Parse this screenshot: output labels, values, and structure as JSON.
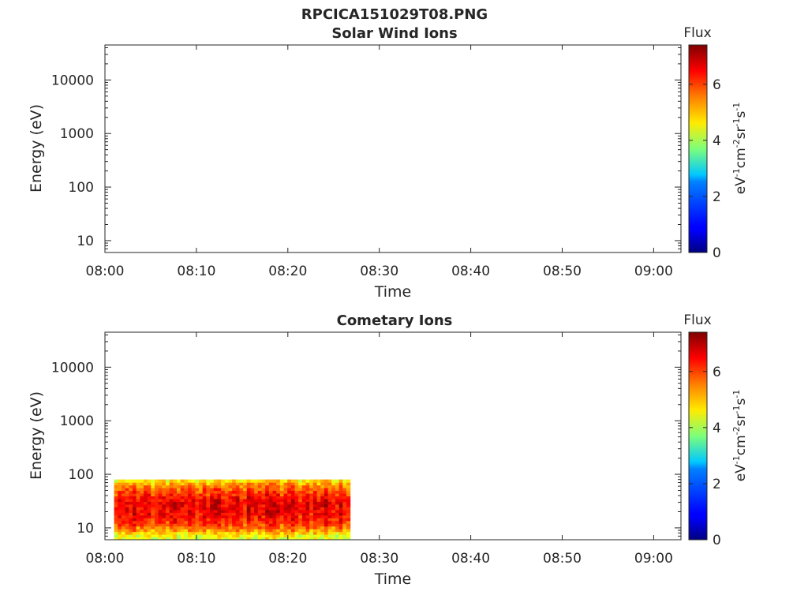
{
  "figure_title": "RPCICA151029T08.PNG",
  "colorbar": {
    "label": "Flux",
    "unit_html": "eV<sup>-1</sup>cm<sup>-2</sup>sr<sup>-1</sup>s<sup>-1</sup>",
    "min": 0,
    "max": 7.4,
    "ticks": [
      0,
      2,
      4,
      6
    ],
    "colormap": "jet"
  },
  "chart_data": [
    {
      "type": "heatmap",
      "title": "Solar Wind Ions",
      "xlabel": "Time",
      "ylabel": "Energy (eV)",
      "x_ticks": [
        "08:00",
        "08:10",
        "08:20",
        "08:30",
        "08:40",
        "08:50",
        "09:00"
      ],
      "x_range_minutes": [
        0,
        63
      ],
      "y_scale": "log",
      "y_ticks": [
        10,
        100,
        1000,
        10000
      ],
      "y_tick_labels": [
        "10",
        "100",
        "1000",
        "10000"
      ],
      "ylim": [
        6,
        45000
      ],
      "data_present": false
    },
    {
      "type": "heatmap",
      "title": "Cometary Ions",
      "xlabel": "Time",
      "ylabel": "Energy (eV)",
      "x_ticks": [
        "08:00",
        "08:10",
        "08:20",
        "08:30",
        "08:40",
        "08:50",
        "09:00"
      ],
      "x_range_minutes": [
        0,
        63
      ],
      "y_scale": "log",
      "y_ticks": [
        10,
        100,
        1000,
        10000
      ],
      "y_tick_labels": [
        "10",
        "100",
        "1000",
        "10000"
      ],
      "ylim": [
        6,
        45000
      ],
      "data_present": true,
      "data_time_range_minutes": [
        1,
        26.8
      ],
      "data_energy_range_eV": [
        6,
        80
      ],
      "flux_profile": [
        {
          "energy": 7,
          "flux": 4.5
        },
        {
          "energy": 9,
          "flux": 5.4
        },
        {
          "energy": 12,
          "flux": 6.1
        },
        {
          "energy": 20,
          "flux": 6.6
        },
        {
          "energy": 30,
          "flux": 6.6
        },
        {
          "energy": 45,
          "flux": 6.1
        },
        {
          "energy": 65,
          "flux": 5.4
        },
        {
          "energy": 80,
          "flux": 4.6
        }
      ],
      "colors": {
        "low": "#40e0d0",
        "mid": "#ffd800",
        "high": "#ff2000",
        "peak": "#cc0000"
      }
    }
  ]
}
